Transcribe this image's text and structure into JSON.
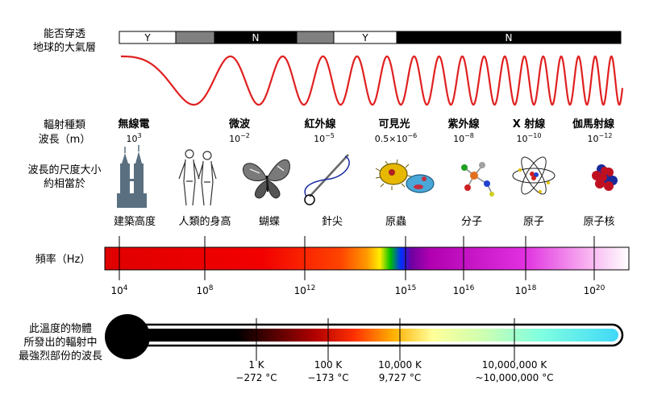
{
  "atmosphere": {
    "label_line1": "能否穿透",
    "label_line2": "地球的大氣層",
    "segments": [
      {
        "text": "Y",
        "fill": "#ffffff",
        "text_color": "#000000"
      },
      {
        "text": "",
        "fill": "#808080",
        "text_color": "#000000"
      },
      {
        "text": "N",
        "fill": "#000000",
        "text_color": "#ffffff"
      },
      {
        "text": "",
        "fill": "#808080",
        "text_color": "#000000"
      },
      {
        "text": "Y",
        "fill": "#ffffff",
        "text_color": "#000000"
      },
      {
        "text": "N",
        "fill": "#000000",
        "text_color": "#ffffff"
      }
    ]
  },
  "wave": {
    "color": "#e02020"
  },
  "radiation": {
    "type_label": "輻射種類",
    "wavelength_label": "波長（m）",
    "types": [
      {
        "name": "無線電",
        "wl_base": "10",
        "wl_exp": "3"
      },
      {
        "name": "微波",
        "wl_base": "10",
        "wl_exp": "−2"
      },
      {
        "name": "紅外線",
        "wl_base": "10",
        "wl_exp": "−5"
      },
      {
        "name": "可見光",
        "wl_base": "0.5×10",
        "wl_exp": "−6"
      },
      {
        "name": "紫外線",
        "wl_base": "10",
        "wl_exp": "−8"
      },
      {
        "name": "X 射線",
        "wl_base": "10",
        "wl_exp": "−10"
      },
      {
        "name": "伽馬射線",
        "wl_base": "10",
        "wl_exp": "−12"
      }
    ]
  },
  "scale": {
    "label_line1": "波長的尺度大小",
    "label_line2": "約相當於",
    "objects": [
      {
        "name": "建築高度",
        "icon": "building-icon"
      },
      {
        "name": "人類的身高",
        "icon": "humans-icon"
      },
      {
        "name": "蝴蝶",
        "icon": "butterfly-icon"
      },
      {
        "name": "針尖",
        "icon": "needle-icon"
      },
      {
        "name": "原蟲",
        "icon": "protozoa-icon"
      },
      {
        "name": "分子",
        "icon": "molecule-icon"
      },
      {
        "name": "原子",
        "icon": "atom-icon"
      },
      {
        "name": "原子核",
        "icon": "nucleus-icon"
      }
    ]
  },
  "frequency": {
    "label": "頻率（Hz）",
    "ticks": [
      {
        "base": "10",
        "exp": "4"
      },
      {
        "base": "10",
        "exp": "8"
      },
      {
        "base": "10",
        "exp": "12"
      },
      {
        "base": "10",
        "exp": "15"
      },
      {
        "base": "10",
        "exp": "16"
      },
      {
        "base": "10",
        "exp": "18"
      },
      {
        "base": "10",
        "exp": "20"
      }
    ]
  },
  "temperature": {
    "label_line1": "此溫度的物體",
    "label_line2": "所發出的輻射中",
    "label_line3": "最強烈部份的波長",
    "ticks": [
      {
        "k": "1 K",
        "c": "−272 °C"
      },
      {
        "k": "100 K",
        "c": "−173 °C"
      },
      {
        "k": "10,000 K",
        "c": "9,727 °C"
      },
      {
        "k": "10,000,000 K",
        "c": "~10,000,000 °C"
      }
    ]
  }
}
